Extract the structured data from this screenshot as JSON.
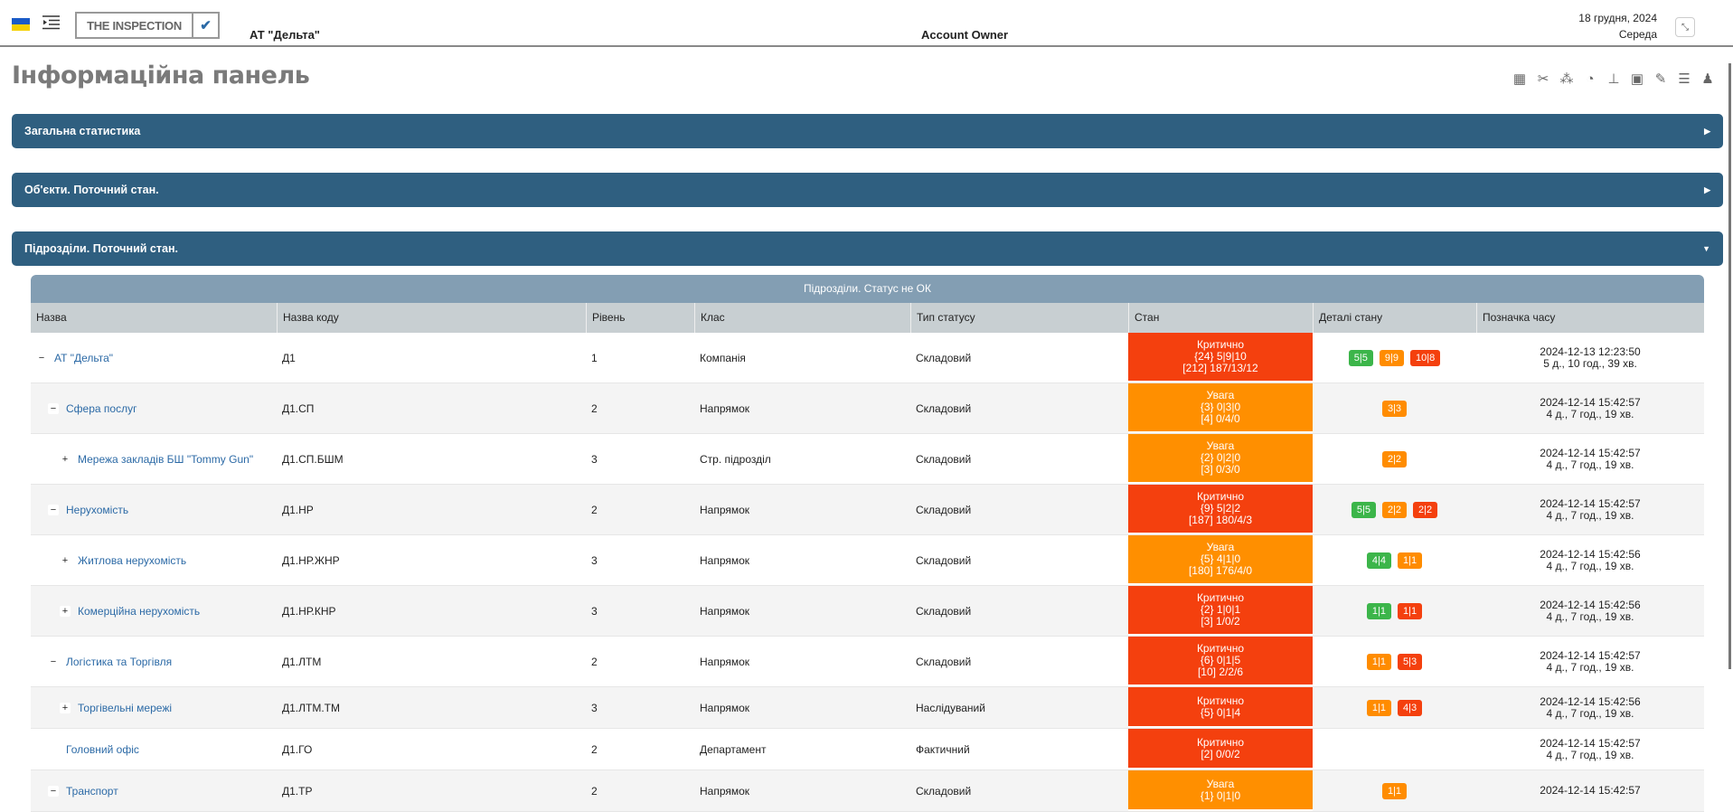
{
  "header": {
    "brand": "THE INSPECTION",
    "brand_check": "✔",
    "company": "АТ \"Дельта\"",
    "role": "Account Owner",
    "date": "18 грудня, 2024",
    "weekday": "Середа",
    "fullscreen_icon": "compress-icon"
  },
  "page_title": "Інформаційна панель",
  "toolbar_icons": [
    "qrcode-icon",
    "tools-icon",
    "cubes-icon",
    "dashboard-icon",
    "sitemap-icon",
    "calendar-check-icon",
    "edit-icon",
    "tasks-icon",
    "users-icon"
  ],
  "panels": [
    {
      "title": "Загальна статистика",
      "state": "collapsed"
    },
    {
      "title": "Об'єкти. Поточний стан.",
      "state": "collapsed"
    },
    {
      "title": "Підрозділи. Поточний стан.",
      "state": "expanded"
    }
  ],
  "table": {
    "caption": "Підрозділи. Статус не ОК",
    "columns": [
      "Назва",
      "Назва коду",
      "Рівень",
      "Клас",
      "Тип статусу",
      "Стан",
      "Деталі стану",
      "Позначка часу"
    ],
    "colors": {
      "critical": "#f4400e",
      "warning": "#ff8f00",
      "green": "#3cb54a",
      "orange": "#ff8c00",
      "red": "#f4400e"
    },
    "rows": [
      {
        "toggle": "−",
        "indent": 0,
        "name": "АТ \"Дельта\"",
        "code": "Д1",
        "level": "1",
        "class": "Компанія",
        "status_type": "Складовий",
        "state": "crit",
        "state_lines": [
          "Критично",
          "{24} 5|9|10",
          "[212] 187/13/12"
        ],
        "badges": [
          [
            "5|5",
            "green"
          ],
          [
            "9|9",
            "orange"
          ],
          [
            "10|8",
            "red"
          ]
        ],
        "time": "2024-12-13 12:23:50",
        "ago": "5 д., 10 год., 39 хв."
      },
      {
        "toggle": "−",
        "indent": 1,
        "name": "Сфера послуг",
        "code": "Д1.СП",
        "level": "2",
        "class": "Напрямок",
        "status_type": "Складовий",
        "state": "warn",
        "state_lines": [
          "Увага",
          "{3} 0|3|0",
          "[4] 0/4/0"
        ],
        "badges": [
          [
            "3|3",
            "orange"
          ]
        ],
        "time": "2024-12-14 15:42:57",
        "ago": "4 д., 7 год., 19 хв."
      },
      {
        "toggle": "+",
        "indent": 2,
        "name": "Мережа закладів БШ \"Tommy Gun\"",
        "code": "Д1.СП.БШМ",
        "level": "3",
        "class": "Стр. підрозділ",
        "status_type": "Складовий",
        "state": "warn",
        "state_lines": [
          "Увага",
          "{2} 0|2|0",
          "[3] 0/3/0"
        ],
        "badges": [
          [
            "2|2",
            "orange"
          ]
        ],
        "time": "2024-12-14 15:42:57",
        "ago": "4 д., 7 год., 19 хв."
      },
      {
        "toggle": "−",
        "indent": 1,
        "name": "Нерухомість",
        "code": "Д1.НР",
        "level": "2",
        "class": "Напрямок",
        "status_type": "Складовий",
        "state": "crit",
        "state_lines": [
          "Критично",
          "{9} 5|2|2",
          "[187] 180/4/3"
        ],
        "badges": [
          [
            "5|5",
            "green"
          ],
          [
            "2|2",
            "orange"
          ],
          [
            "2|2",
            "red"
          ]
        ],
        "time": "2024-12-14 15:42:57",
        "ago": "4 д., 7 год., 19 хв."
      },
      {
        "toggle": "+",
        "indent": 2,
        "name": "Житлова нерухомість",
        "code": "Д1.НР.ЖНР",
        "level": "3",
        "class": "Напрямок",
        "status_type": "Складовий",
        "state": "warn",
        "state_lines": [
          "Увага",
          "{5} 4|1|0",
          "[180] 176/4/0"
        ],
        "badges": [
          [
            "4|4",
            "green"
          ],
          [
            "1|1",
            "orange"
          ]
        ],
        "time": "2024-12-14 15:42:56",
        "ago": "4 д., 7 год., 19 хв."
      },
      {
        "toggle": "+",
        "indent": 2,
        "name": "Комерційна нерухомість",
        "code": "Д1.НР.КНР",
        "level": "3",
        "class": "Напрямок",
        "status_type": "Складовий",
        "state": "crit",
        "state_lines": [
          "Критично",
          "{2} 1|0|1",
          "[3] 1/0/2"
        ],
        "badges": [
          [
            "1|1",
            "green"
          ],
          [
            "1|1",
            "red"
          ]
        ],
        "time": "2024-12-14 15:42:56",
        "ago": "4 д., 7 год., 19 хв."
      },
      {
        "toggle": "−",
        "indent": 1,
        "name": "Логістика та Торгівля",
        "code": "Д1.ЛТМ",
        "level": "2",
        "class": "Напрямок",
        "status_type": "Складовий",
        "state": "crit",
        "state_lines": [
          "Критично",
          "{6} 0|1|5",
          "[10] 2/2/6"
        ],
        "badges": [
          [
            "1|1",
            "orange"
          ],
          [
            "5|3",
            "red"
          ]
        ],
        "time": "2024-12-14 15:42:57",
        "ago": "4 д., 7 год., 19 хв."
      },
      {
        "toggle": "+",
        "indent": 2,
        "name": "Торгівельні мережі",
        "code": "Д1.ЛТМ.ТМ",
        "level": "3",
        "class": "Напрямок",
        "status_type": "Наслідуваний",
        "state": "crit",
        "state_lines": [
          "Критично",
          "{5} 0|1|4"
        ],
        "badges": [
          [
            "1|1",
            "orange"
          ],
          [
            "4|3",
            "red"
          ]
        ],
        "time": "2024-12-14 15:42:56",
        "ago": "4 д., 7 год., 19 хв."
      },
      {
        "toggle": "",
        "indent": 1,
        "name": "Головний офіс",
        "code": "Д1.ГО",
        "level": "2",
        "class": "Департамент",
        "status_type": "Фактичний",
        "state": "crit",
        "state_lines": [
          "Критично",
          "[2] 0/0/2"
        ],
        "badges": [],
        "time": "2024-12-14 15:42:57",
        "ago": "4 д., 7 год., 19 хв."
      },
      {
        "toggle": "−",
        "indent": 1,
        "name": "Транспорт",
        "code": "Д1.ТР",
        "level": "2",
        "class": "Напрямок",
        "status_type": "Складовий",
        "state": "warn",
        "state_lines": [
          "Увага",
          "{1} 0|1|0"
        ],
        "badges": [
          [
            "1|1",
            "orange"
          ]
        ],
        "time": "2024-12-14 15:42:57",
        "ago": ""
      }
    ]
  }
}
